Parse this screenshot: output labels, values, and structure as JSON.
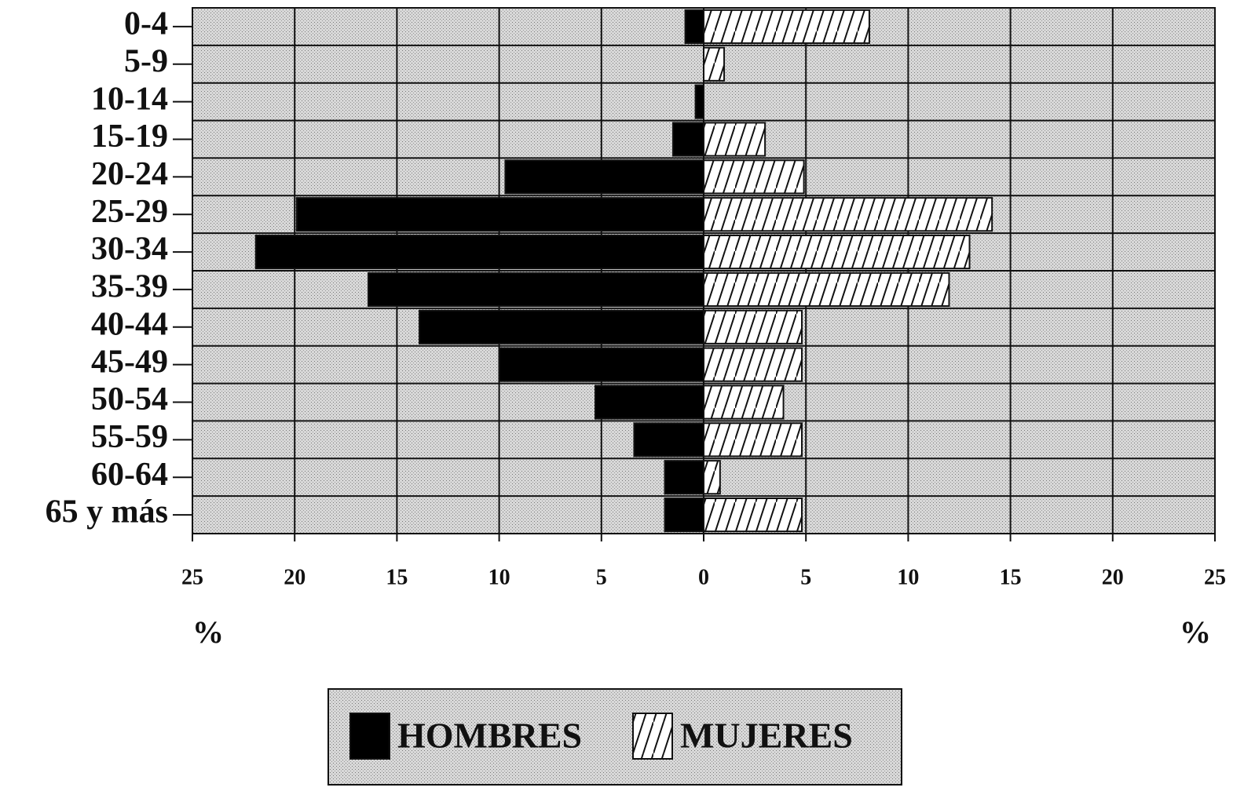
{
  "chart_data": {
    "type": "pyramid",
    "categories": [
      "0-4",
      "5-9",
      "10-14",
      "15-19",
      "20-24",
      "25-29",
      "30-34",
      "35-39",
      "40-44",
      "45-49",
      "50-54",
      "55-59",
      "60-64",
      "65 y más"
    ],
    "series": [
      {
        "name": "HOMBRES",
        "color": "#000000",
        "values": [
          -0.9,
          0,
          -0.4,
          -1.5,
          -9.7,
          -19.9,
          -21.9,
          -16.4,
          -13.9,
          -10.0,
          -5.3,
          -3.4,
          -1.9,
          -1.9
        ]
      },
      {
        "name": "MUJERES",
        "color": "#ffffff",
        "pattern": "hatch",
        "values": [
          8.1,
          1.0,
          0,
          3.0,
          4.9,
          14.1,
          13.0,
          12.0,
          4.8,
          4.8,
          3.9,
          4.8,
          0.8,
          4.8
        ]
      }
    ],
    "xlim": [
      -25,
      25
    ],
    "xticks": [
      {
        "value": -25,
        "label": "25"
      },
      {
        "value": -20,
        "label": "20"
      },
      {
        "value": -15,
        "label": "15"
      },
      {
        "value": -10,
        "label": "10"
      },
      {
        "value": -5,
        "label": "5"
      },
      0,
      5,
      10,
      15,
      20,
      25
    ],
    "xlabel": "%",
    "grid": true
  }
}
